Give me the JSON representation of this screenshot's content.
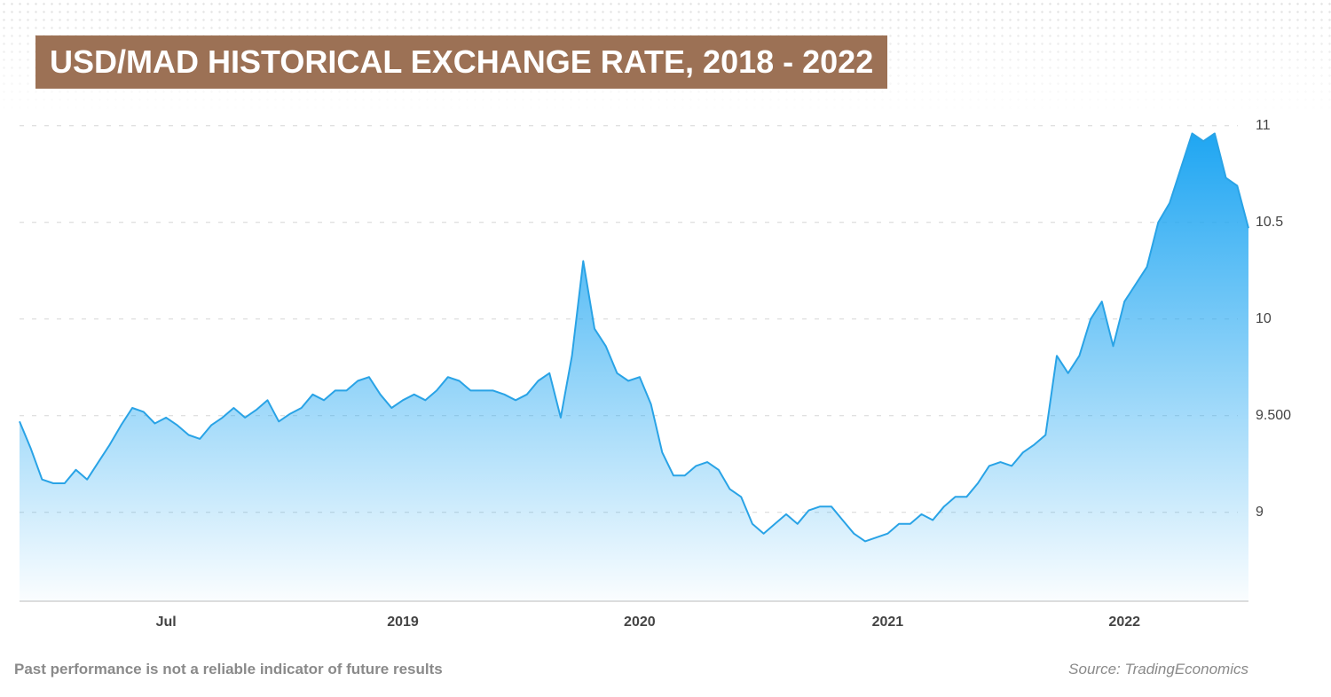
{
  "chart_data": {
    "type": "area",
    "title": "USD/MAD HISTORICAL EXCHANGE RATE, 2018 - 2022",
    "note": "Past performance is not a reliable indicator of future results",
    "source": "Source: TradingEconomics",
    "color": "#29a3e6",
    "categories": [
      null,
      null,
      null,
      null,
      null,
      null,
      null,
      null,
      null,
      null,
      null,
      null,
      null,
      "Jul",
      null,
      null,
      null,
      null,
      null,
      null,
      null,
      null,
      null,
      null,
      null,
      null,
      null,
      null,
      null,
      null,
      null,
      null,
      null,
      null,
      "2019",
      null,
      null,
      null,
      null,
      null,
      null,
      null,
      null,
      null,
      null,
      null,
      null,
      null,
      null,
      null,
      null,
      null,
      null,
      null,
      null,
      "2020",
      null,
      null,
      null,
      null,
      null,
      null,
      null,
      null,
      null,
      null,
      null,
      null,
      null,
      null,
      null,
      null,
      null,
      null,
      null,
      null,
      null,
      "2021",
      null,
      null,
      null,
      null,
      null,
      null,
      null,
      null,
      null,
      null,
      null,
      null,
      null,
      null,
      null,
      null,
      null,
      null,
      null,
      null,
      "2022",
      null,
      null,
      null,
      null,
      null,
      null,
      null,
      null,
      null,
      null,
      null
    ],
    "values": [
      9.47,
      9.33,
      9.17,
      9.15,
      9.15,
      9.22,
      9.17,
      9.26,
      9.35,
      9.45,
      9.54,
      9.52,
      9.46,
      9.49,
      9.45,
      9.4,
      9.38,
      9.45,
      9.49,
      9.54,
      9.49,
      9.53,
      9.58,
      9.47,
      9.51,
      9.54,
      9.61,
      9.58,
      9.63,
      9.63,
      9.68,
      9.7,
      9.61,
      9.54,
      9.58,
      9.61,
      9.58,
      9.63,
      9.7,
      9.68,
      9.63,
      9.63,
      9.63,
      9.61,
      9.58,
      9.61,
      9.68,
      9.72,
      9.49,
      9.81,
      10.3,
      9.95,
      9.86,
      9.72,
      9.68,
      9.7,
      9.56,
      9.31,
      9.19,
      9.19,
      9.24,
      9.26,
      9.22,
      9.12,
      9.08,
      8.94,
      8.89,
      8.94,
      8.99,
      8.94,
      9.01,
      9.03,
      9.03,
      8.96,
      8.89,
      8.85,
      8.87,
      8.89,
      8.94,
      8.94,
      8.99,
      8.96,
      9.03,
      9.08,
      9.08,
      9.15,
      9.24,
      9.26,
      9.24,
      9.31,
      9.35,
      9.4,
      9.81,
      9.72,
      9.81,
      10.0,
      10.09,
      9.86,
      10.09,
      10.18,
      10.27,
      10.5,
      10.6,
      10.78,
      10.96,
      10.92,
      10.96,
      10.73,
      10.69,
      10.47
    ],
    "ylim": [
      8.54,
      11.1
    ],
    "yticks": [
      9,
      {
        "value": 9.5,
        "label": "9.500"
      },
      10,
      10.5,
      11
    ],
    "grid": true
  }
}
